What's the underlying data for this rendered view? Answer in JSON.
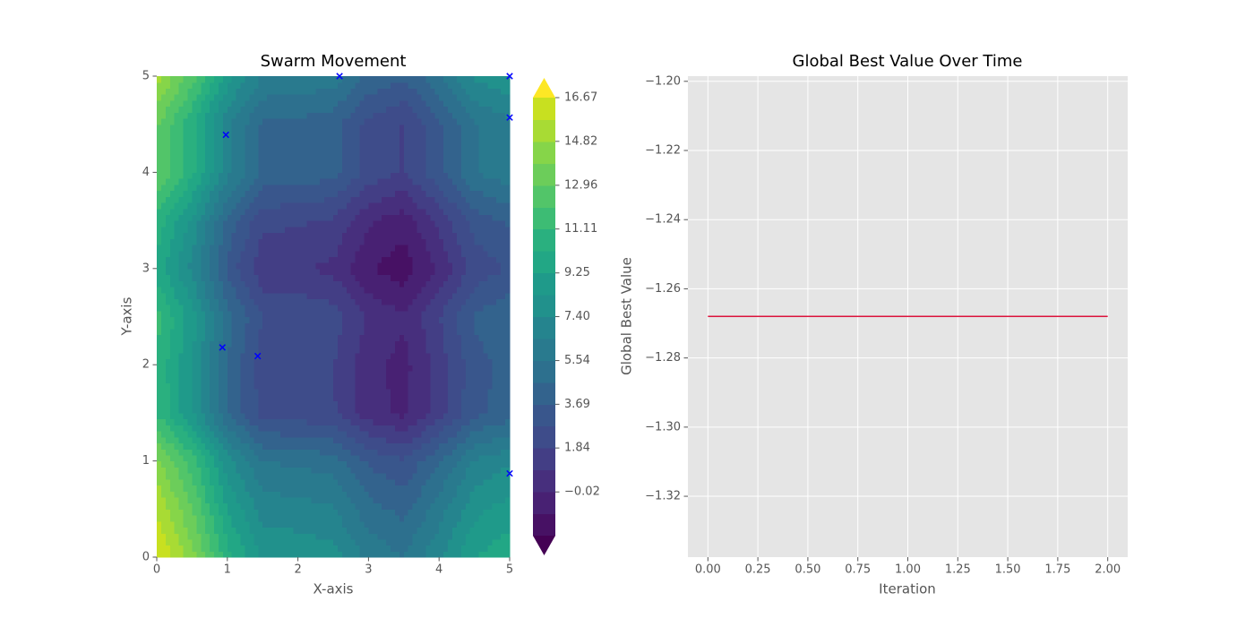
{
  "chart_data": [
    {
      "type": "contour",
      "title": "Swarm Movement",
      "xlabel": "X-axis",
      "ylabel": "Y-axis",
      "x": [
        0,
        0.5,
        1,
        1.5,
        2,
        2.5,
        3,
        3.5,
        4,
        4.5,
        5
      ],
      "y": [
        0,
        0.5,
        1,
        1.5,
        2,
        2.5,
        3,
        3.5,
        4,
        4.5,
        5
      ],
      "z": [
        [
          16.88,
          14.22,
          10.5,
          8.2,
          8.07,
          7.78,
          6.21,
          5.55,
          7.23,
          9.26,
          9.93
        ],
        [
          15.67,
          13.01,
          9.29,
          6.99,
          6.86,
          6.57,
          5.0,
          4.34,
          6.02,
          8.05,
          8.72
        ],
        [
          14.2,
          11.54,
          7.82,
          5.52,
          5.39,
          5.1,
          3.53,
          2.87,
          4.55,
          6.58,
          7.25
        ],
        [
          11.06,
          8.4,
          4.68,
          2.38,
          2.25,
          1.96,
          0.39,
          -0.27,
          1.41,
          3.44,
          4.11
        ],
        [
          10.98,
          8.32,
          4.6,
          2.3,
          2.17,
          1.88,
          0.31,
          -0.35,
          1.33,
          3.36,
          4.03
        ],
        [
          11.43,
          8.77,
          5.05,
          2.75,
          2.62,
          2.33,
          0.76,
          0.1,
          1.78,
          3.81,
          4.48
        ],
        [
          9.8,
          7.14,
          3.42,
          1.12,
          0.99,
          0.7,
          -0.87,
          -1.53,
          0.15,
          2.18,
          2.85
        ],
        [
          10.79,
          8.13,
          4.41,
          2.11,
          1.98,
          1.69,
          0.12,
          -0.54,
          1.14,
          3.17,
          3.84
        ],
        [
          13.1,
          10.44,
          6.72,
          4.42,
          4.29,
          4.0,
          2.43,
          1.77,
          3.45,
          5.48,
          6.15
        ],
        [
          13.11,
          10.45,
          6.73,
          4.43,
          4.3,
          4.01,
          2.44,
          1.78,
          3.46,
          5.49,
          6.16
        ],
        [
          15.12,
          12.46,
          8.74,
          6.44,
          6.31,
          6.02,
          4.45,
          3.79,
          5.47,
          7.5,
          8.17
        ]
      ],
      "levels": [
        -1.87,
        -0.95,
        -0.02,
        0.91,
        1.84,
        2.77,
        3.69,
        4.62,
        5.54,
        6.47,
        7.4,
        8.33,
        9.25,
        10.18,
        11.11,
        12.03,
        12.96,
        13.89,
        14.82,
        15.74,
        16.67
      ],
      "colors": [
        "#440154",
        "#471164",
        "#482173",
        "#472f7d",
        "#433e85",
        "#3e4c8a",
        "#39568c",
        "#33638d",
        "#2d708e",
        "#297a8e",
        "#25848e",
        "#21918c",
        "#1f9a8a",
        "#22a785",
        "#2ab07f",
        "#3dbc74",
        "#52c569",
        "#6ccd5a",
        "#86d549",
        "#a8db34",
        "#c8e020",
        "#fde725"
      ],
      "extend": "both",
      "xlim": [
        0,
        5
      ],
      "ylim": [
        0,
        5
      ],
      "xticks": [
        0,
        1,
        2,
        3,
        4,
        5
      ],
      "yticks": [
        0,
        1,
        2,
        3,
        4,
        5
      ],
      "colorbar_ticks": [
        {
          "value": -0.02,
          "label": "−0.02"
        },
        1.84,
        3.69,
        5.54,
        {
          "value": 7.4,
          "label": "7.40"
        },
        9.25,
        11.11,
        12.96,
        14.82,
        16.67
      ],
      "grid": false,
      "scatter": {
        "x": [
          0.98,
          2.59,
          5.0,
          5.0,
          0.93,
          1.43,
          5.0
        ],
        "y": [
          4.39,
          5.0,
          5.0,
          4.57,
          2.18,
          2.09,
          0.87
        ],
        "color": "#0000ff",
        "marker": "x"
      }
    },
    {
      "type": "line",
      "title": "Global Best Value Over Time",
      "xlabel": "Iteration",
      "ylabel": "Global Best Value",
      "x": [
        0,
        1,
        2
      ],
      "values": [
        -1.268,
        -1.268,
        -1.268
      ],
      "color": "#dc143c",
      "xlim": [
        -0.1,
        2.1
      ],
      "ylim": [
        -1.3376,
        -1.1985
      ],
      "xticks": [
        {
          "value": 0,
          "label": "0.00"
        },
        0.25,
        {
          "value": 0.5,
          "label": "0.50"
        },
        0.75,
        {
          "value": 1,
          "label": "1.00"
        },
        1.25,
        {
          "value": 1.5,
          "label": "1.50"
        },
        1.75,
        {
          "value": 2,
          "label": "2.00"
        }
      ],
      "yticks": [
        {
          "value": -1.32,
          "label": "−1.32"
        },
        {
          "value": -1.3,
          "label": "−1.30"
        },
        {
          "value": -1.28,
          "label": "−1.28"
        },
        {
          "value": -1.26,
          "label": "−1.26"
        },
        {
          "value": -1.24,
          "label": "−1.24"
        },
        {
          "value": -1.22,
          "label": "−1.22"
        },
        {
          "value": -1.2,
          "label": "−1.20"
        }
      ],
      "grid": true,
      "background": "#e5e5e5"
    }
  ]
}
